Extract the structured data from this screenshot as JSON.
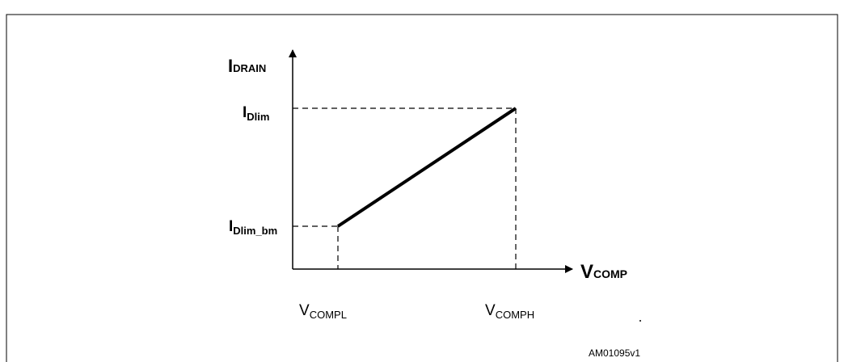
{
  "axes": {
    "y": {
      "main": "I",
      "sub": "DRAIN"
    },
    "x": {
      "main": "V",
      "sub": "COMP"
    }
  },
  "y_levels": [
    {
      "main": "I",
      "sub": "Dlim_bm"
    },
    {
      "main": "I",
      "sub": "Dlim"
    }
  ],
  "x_levels": [
    {
      "main": "V",
      "sub": "COMPL"
    },
    {
      "main": "V",
      "sub": "COMPH"
    }
  ],
  "footer": "AM01095v1"
}
